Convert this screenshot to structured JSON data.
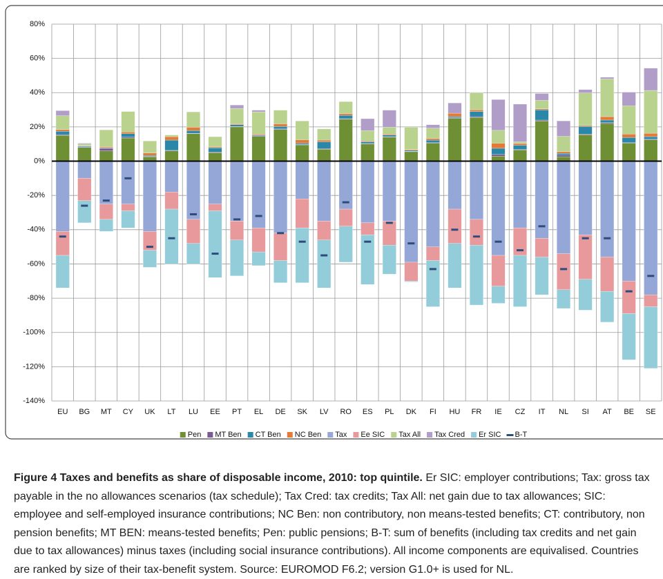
{
  "chart_data": {
    "type": "bar",
    "stacked": true,
    "categories": [
      "EU",
      "BG",
      "MT",
      "CY",
      "UK",
      "LT",
      "LU",
      "EE",
      "PT",
      "EL",
      "DE",
      "SK",
      "LV",
      "RO",
      "ES",
      "PL",
      "DK",
      "FI",
      "HU",
      "FR",
      "IE",
      "CZ",
      "IT",
      "NL",
      "SI",
      "AT",
      "BE",
      "SE"
    ],
    "ylim": [
      -140,
      80
    ],
    "yticks": [
      {
        "value": -140,
        "label": "-140%"
      },
      {
        "value": -120,
        "label": "-120%"
      },
      {
        "value": -100,
        "label": "-100%"
      },
      {
        "value": -80,
        "label": "-80%"
      },
      {
        "value": -60,
        "label": "-60%"
      },
      {
        "value": -40,
        "label": "-40%"
      },
      {
        "value": -20,
        "label": "-20%"
      },
      {
        "value": 0,
        "label": "0%"
      },
      {
        "value": 20,
        "label": "20%"
      },
      {
        "value": 40,
        "label": "40%"
      },
      {
        "value": 60,
        "label": "60%"
      },
      {
        "value": 80,
        "label": "80%"
      }
    ],
    "grid": true,
    "series": [
      {
        "name": "Pen",
        "color": "#6f8f35",
        "values": [
          15,
          8,
          6,
          13.5,
          2.5,
          6,
          16,
          5,
          20,
          14.5,
          18.5,
          9.5,
          7,
          24.5,
          10,
          14,
          5.5,
          10.5,
          25,
          25.5,
          3,
          6.5,
          23.5,
          2.5,
          15.5,
          22,
          10.5,
          12.5
        ]
      },
      {
        "name": "MT Ben",
        "color": "#7b5a91",
        "values": [
          0.5,
          0.3,
          1.5,
          0.5,
          0.3,
          0.3,
          0.3,
          0.3,
          0.3,
          0.3,
          0.3,
          0.3,
          0.3,
          0.3,
          0.3,
          0.3,
          0.3,
          0.3,
          0.3,
          0.5,
          1,
          0.3,
          0.5,
          1,
          0.3,
          0.5,
          0.3,
          0.3
        ]
      },
      {
        "name": "CT Ben",
        "color": "#2a87a8",
        "values": [
          2,
          0.5,
          0.3,
          2,
          0.5,
          6,
          1.5,
          2.5,
          1,
          0.5,
          1.5,
          0.7,
          4,
          2,
          1,
          1,
          0.5,
          1.5,
          0.7,
          3,
          3.5,
          2.5,
          6,
          1,
          4.5,
          1.5,
          3,
          1.5
        ]
      },
      {
        "name": "NC Ben",
        "color": "#e07b39",
        "values": [
          1,
          0.2,
          0.5,
          1,
          1.5,
          2,
          2,
          0.5,
          0.5,
          0.5,
          1.5,
          2,
          1,
          1,
          0.5,
          0.5,
          0.5,
          1,
          2,
          1,
          3,
          1,
          0.5,
          1,
          0.5,
          2,
          2,
          2
        ]
      },
      {
        "name": "Tax",
        "color": "#94a7d6",
        "values": [
          -41,
          -10,
          -25,
          -25,
          -41,
          -18,
          -34,
          -25,
          -35,
          -39,
          -42,
          -22,
          -35,
          -28,
          -36,
          -35,
          -59,
          -50,
          -28,
          -34,
          -55,
          -39,
          -45,
          -54,
          -43,
          -56,
          -70,
          -78
        ]
      },
      {
        "name": "Ee SIC",
        "color": "#e8999b",
        "values": [
          -14,
          -13,
          -9,
          -4,
          -11,
          -10,
          -14,
          -4,
          -11,
          -14,
          -16,
          -17,
          -11,
          -10,
          -7,
          -14,
          -11,
          -8,
          -20,
          -15,
          -18,
          -16,
          -11,
          -21,
          -26,
          -20,
          -19,
          -7
        ]
      },
      {
        "name": "Tax All",
        "color": "#b9d38f",
        "values": [
          8,
          1,
          10,
          12,
          7,
          1,
          9,
          6,
          9,
          13,
          8,
          11,
          6.5,
          7,
          6,
          4,
          13,
          6,
          0,
          10,
          7.5,
          1,
          5,
          9,
          19,
          22,
          16.5,
          25
        ]
      },
      {
        "name": "Tax Cred",
        "color": "#b09dc8",
        "values": [
          3,
          0.5,
          0,
          0,
          0,
          0,
          0,
          0,
          2,
          1,
          0,
          0,
          0,
          0,
          7,
          10,
          0,
          2,
          6,
          0,
          18,
          22,
          4,
          9,
          2,
          1,
          8,
          13
        ]
      },
      {
        "name": "Er SIC",
        "color": "#92cdd9",
        "values": [
          -19,
          -13,
          -7,
          -10,
          -10,
          -32,
          -12,
          -39,
          -21,
          -8,
          -13,
          -32,
          -28,
          -21,
          -29,
          -17,
          -0.5,
          -27,
          -26,
          -35,
          -10,
          -30,
          -22,
          -11,
          -18,
          -18,
          -27,
          -36
        ]
      },
      {
        "name": "B-T",
        "color": "#2d4c7c",
        "kind": "marker",
        "values": [
          -44,
          -26,
          -23,
          -10,
          -50,
          -45,
          -31,
          -54,
          -34,
          -32,
          -42,
          -47,
          -55,
          -24,
          -47,
          -36,
          -48,
          -63,
          -40,
          -44,
          -47,
          -52,
          -38,
          -63,
          -45,
          -45,
          -76,
          -67
        ]
      }
    ]
  },
  "caption": {
    "title": "Figure 4 Taxes and benefits as share of disposable income, 2010: top quintile.",
    "text": "Er SIC: employer contributions; Tax: gross tax payable in the no allowances scenarios (tax schedule); Tax Cred: tax credits; Tax All: net gain due to tax allowances; SIC: employee and self-employed insurance contributions; NC Ben: non contributory, non means-tested benefits; CT: contributory, non pension benefits; MT BEN: means-tested benefits; Pen: public pensions; B-T: sum of benefits (including tax credits and net gain due to tax allowances) minus taxes (including social insurance contributions). All income components are equivalised. Countries are ranked by size of their tax-benefit system. Source: EUROMOD F6.2; version G1.0+ is used for NL."
  }
}
